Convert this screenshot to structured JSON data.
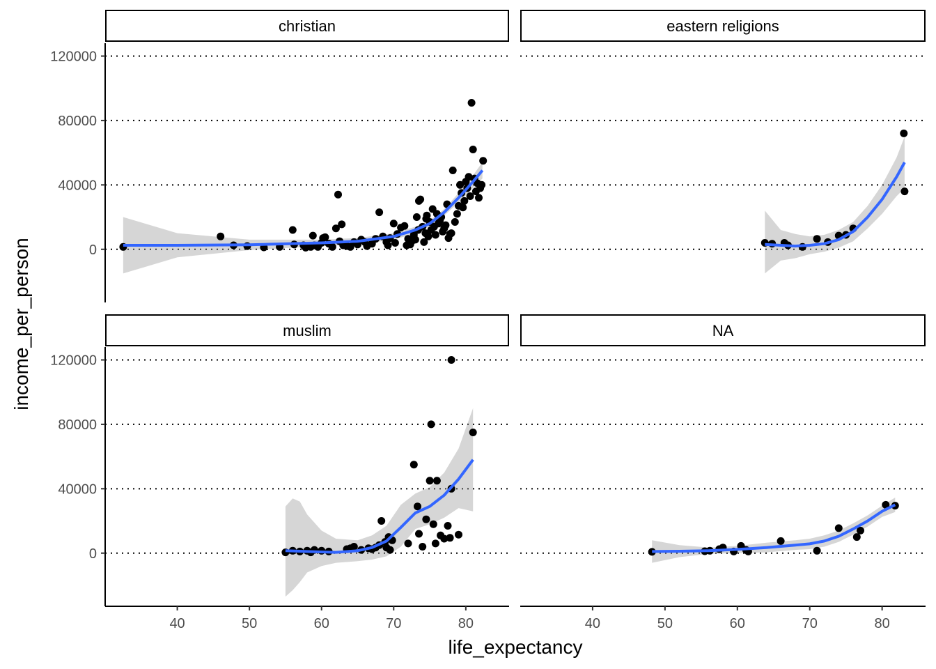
{
  "chart_data": {
    "type": "scatter",
    "subtype": "faceted scatter with loess smooth and confidence band",
    "xlabel": "life_expectancy",
    "ylabel": "income_per_person",
    "x_ticks": [
      40,
      50,
      60,
      70,
      80
    ],
    "y_ticks": [
      0,
      40000,
      80000,
      120000
    ],
    "xlim": [
      30,
      86
    ],
    "ylim": [
      -33000,
      128000
    ],
    "grid": "horizontal dotted major lines",
    "legend": "none",
    "colors": {
      "smooth": "#3366ff",
      "band": "#999999",
      "points": "#000000"
    },
    "facets": [
      {
        "label": "christian",
        "points": [
          [
            32.5,
            1500
          ],
          [
            46,
            8000
          ],
          [
            47.8,
            2500
          ],
          [
            49.7,
            2000
          ],
          [
            52,
            1200
          ],
          [
            54.2,
            1500
          ],
          [
            56,
            12000
          ],
          [
            56.2,
            3000
          ],
          [
            57.5,
            2500
          ],
          [
            57.8,
            1000
          ],
          [
            58.5,
            1500
          ],
          [
            58.8,
            8500
          ],
          [
            59,
            2500
          ],
          [
            59.5,
            1500
          ],
          [
            60,
            4000
          ],
          [
            60.2,
            7000
          ],
          [
            60.5,
            7500
          ],
          [
            61,
            3500
          ],
          [
            61.5,
            1500
          ],
          [
            62,
            13000
          ],
          [
            62.5,
            5000
          ],
          [
            63,
            2500
          ],
          [
            63.5,
            2000
          ],
          [
            64,
            1500
          ],
          [
            64.5,
            4500
          ],
          [
            65,
            3000
          ],
          [
            65.5,
            6000
          ],
          [
            62.8,
            15500
          ],
          [
            62.3,
            34000
          ],
          [
            66,
            4500
          ],
          [
            66.3,
            2000
          ],
          [
            67,
            3500
          ],
          [
            67.5,
            6500
          ],
          [
            68,
            23000
          ],
          [
            68.5,
            8000
          ],
          [
            69,
            4500
          ],
          [
            69.2,
            2500
          ],
          [
            69.5,
            7000
          ],
          [
            70,
            16000
          ],
          [
            70.2,
            4000
          ],
          [
            70.5,
            9500
          ],
          [
            71,
            13500
          ],
          [
            71.5,
            14500
          ],
          [
            71.8,
            2500
          ],
          [
            72,
            6500
          ],
          [
            72.3,
            3000
          ],
          [
            72.5,
            5000
          ],
          [
            72.8,
            9000
          ],
          [
            73,
            6000
          ],
          [
            73.2,
            20000
          ],
          [
            73.4,
            12000
          ],
          [
            73.5,
            30000
          ],
          [
            73.7,
            31000
          ],
          [
            74,
            14000
          ],
          [
            74.2,
            4500
          ],
          [
            74.4,
            10000
          ],
          [
            74.5,
            19000
          ],
          [
            74.6,
            21000
          ],
          [
            74.8,
            8000
          ],
          [
            75,
            17000
          ],
          [
            75.2,
            12000
          ],
          [
            75.4,
            25000
          ],
          [
            75.6,
            14000
          ],
          [
            75.8,
            9000
          ],
          [
            76,
            22000
          ],
          [
            76.2,
            16000
          ],
          [
            76.4,
            18000
          ],
          [
            76.6,
            20000
          ],
          [
            76.8,
            11000
          ],
          [
            77,
            13000
          ],
          [
            77.2,
            15000
          ],
          [
            77.4,
            28000
          ],
          [
            77.6,
            7000
          ],
          [
            77.8,
            9500
          ],
          [
            78,
            10000
          ],
          [
            78.2,
            49000
          ],
          [
            78.5,
            17000
          ],
          [
            78.8,
            22000
          ],
          [
            79,
            27000
          ],
          [
            79.2,
            40000
          ],
          [
            79.4,
            35000
          ],
          [
            79.6,
            26000
          ],
          [
            79.8,
            30000
          ],
          [
            80,
            42000
          ],
          [
            80.2,
            38000
          ],
          [
            80.4,
            45000
          ],
          [
            80.6,
            33000
          ],
          [
            80.8,
            91000
          ],
          [
            81,
            62000
          ],
          [
            81.2,
            44000
          ],
          [
            81.4,
            36000
          ],
          [
            81.6,
            41000
          ],
          [
            81.8,
            32000
          ],
          [
            82,
            38000
          ],
          [
            82.2,
            40000
          ],
          [
            82.4,
            55000
          ]
        ],
        "smooth": [
          [
            32.5,
            2500
          ],
          [
            40,
            2500
          ],
          [
            50,
            2800
          ],
          [
            60,
            4000
          ],
          [
            65,
            5000
          ],
          [
            70,
            8000
          ],
          [
            73,
            12000
          ],
          [
            75,
            16000
          ],
          [
            77,
            23000
          ],
          [
            79,
            32000
          ],
          [
            81,
            42000
          ],
          [
            82.3,
            49000
          ]
        ],
        "band_upper": [
          [
            32.5,
            20000
          ],
          [
            40,
            10000
          ],
          [
            50,
            6000
          ],
          [
            60,
            6000
          ],
          [
            65,
            7000
          ],
          [
            70,
            10000
          ],
          [
            73,
            14000
          ],
          [
            75,
            18000
          ],
          [
            77,
            25000
          ],
          [
            79,
            35000
          ],
          [
            81,
            46000
          ],
          [
            82.3,
            54000
          ]
        ],
        "band_lower": [
          [
            32.5,
            -15000
          ],
          [
            40,
            -5000
          ],
          [
            50,
            -500
          ],
          [
            60,
            2000
          ],
          [
            65,
            3000
          ],
          [
            70,
            6000
          ],
          [
            73,
            10000
          ],
          [
            75,
            14000
          ],
          [
            77,
            21000
          ],
          [
            79,
            29000
          ],
          [
            81,
            38000
          ],
          [
            82.3,
            44000
          ]
        ]
      },
      {
        "label": "eastern religions",
        "points": [
          [
            63.8,
            4000
          ],
          [
            64.8,
            3500
          ],
          [
            66.5,
            4000
          ],
          [
            67,
            2500
          ],
          [
            69,
            1500
          ],
          [
            71,
            6500
          ],
          [
            72.5,
            4500
          ],
          [
            74,
            8500
          ],
          [
            75,
            9000
          ],
          [
            76,
            13000
          ],
          [
            83,
            72000
          ],
          [
            83.1,
            36000
          ]
        ],
        "smooth": [
          [
            63.8,
            3000
          ],
          [
            66,
            2500
          ],
          [
            68,
            2000
          ],
          [
            70,
            2500
          ],
          [
            72,
            3500
          ],
          [
            74,
            6000
          ],
          [
            76,
            11000
          ],
          [
            78,
            20000
          ],
          [
            80,
            31000
          ],
          [
            82,
            45000
          ],
          [
            83.1,
            54000
          ]
        ],
        "band_upper": [
          [
            63.8,
            24000
          ],
          [
            66,
            12000
          ],
          [
            68,
            9500
          ],
          [
            70,
            8000
          ],
          [
            72,
            9000
          ],
          [
            74,
            12000
          ],
          [
            76,
            17000
          ],
          [
            78,
            27000
          ],
          [
            80,
            40000
          ],
          [
            82,
            57000
          ],
          [
            83.1,
            70000
          ]
        ],
        "band_lower": [
          [
            63.8,
            -15000
          ],
          [
            66,
            -7000
          ],
          [
            68,
            -5500
          ],
          [
            70,
            -3000
          ],
          [
            72,
            -1500
          ],
          [
            74,
            1000
          ],
          [
            76,
            5000
          ],
          [
            78,
            13000
          ],
          [
            80,
            22000
          ],
          [
            82,
            33000
          ],
          [
            83.1,
            38000
          ]
        ]
      },
      {
        "label": "muslim",
        "points": [
          [
            55,
            500
          ],
          [
            56,
            1500
          ],
          [
            57,
            1000
          ],
          [
            58,
            1500
          ],
          [
            58.5,
            500
          ],
          [
            59,
            2000
          ],
          [
            60,
            1500
          ],
          [
            61,
            1000
          ],
          [
            63.5,
            2500
          ],
          [
            64,
            3000
          ],
          [
            64.5,
            4000
          ],
          [
            65.5,
            2000
          ],
          [
            66.5,
            3000
          ],
          [
            67,
            2500
          ],
          [
            67.5,
            3500
          ],
          [
            68,
            5000
          ],
          [
            68.3,
            20000
          ],
          [
            68.8,
            7000
          ],
          [
            69,
            3500
          ],
          [
            69.3,
            10000
          ],
          [
            69.5,
            2000
          ],
          [
            69.8,
            8000
          ],
          [
            72,
            6000
          ],
          [
            72.8,
            55000
          ],
          [
            73.3,
            29000
          ],
          [
            73.5,
            12000
          ],
          [
            74,
            4000
          ],
          [
            74.5,
            21000
          ],
          [
            75,
            45000
          ],
          [
            75.2,
            80000
          ],
          [
            75.5,
            18000
          ],
          [
            75.8,
            6000
          ],
          [
            76,
            45000
          ],
          [
            76.5,
            11000
          ],
          [
            77,
            9000
          ],
          [
            77.5,
            17000
          ],
          [
            77.8,
            9500
          ],
          [
            78,
            40000
          ],
          [
            78,
            120000
          ],
          [
            79,
            11500
          ],
          [
            81,
            75000
          ]
        ],
        "smooth": [
          [
            55,
            1500
          ],
          [
            58,
            1000
          ],
          [
            62,
            500
          ],
          [
            65,
            1500
          ],
          [
            67,
            3500
          ],
          [
            69,
            7500
          ],
          [
            71,
            16000
          ],
          [
            73,
            25000
          ],
          [
            75,
            29000
          ],
          [
            77,
            36000
          ],
          [
            79,
            46000
          ],
          [
            81,
            58000
          ]
        ],
        "band_upper": [
          [
            55,
            29000
          ],
          [
            56,
            34000
          ],
          [
            57,
            32000
          ],
          [
            58,
            24000
          ],
          [
            60,
            14000
          ],
          [
            62,
            9000
          ],
          [
            65,
            8000
          ],
          [
            67,
            11000
          ],
          [
            69,
            17000
          ],
          [
            71,
            30000
          ],
          [
            73,
            37000
          ],
          [
            75,
            41000
          ],
          [
            77,
            50000
          ],
          [
            79,
            65000
          ],
          [
            81,
            90000
          ]
        ],
        "band_lower": [
          [
            55,
            -27000
          ],
          [
            56,
            -23000
          ],
          [
            57,
            -18000
          ],
          [
            58,
            -12000
          ],
          [
            60,
            -8000
          ],
          [
            62,
            -6000
          ],
          [
            65,
            -5000
          ],
          [
            67,
            -4000
          ],
          [
            69,
            -2000
          ],
          [
            71,
            4000
          ],
          [
            73,
            15000
          ],
          [
            75,
            18000
          ],
          [
            77,
            22000
          ],
          [
            79,
            28000
          ],
          [
            81,
            26000
          ]
        ]
      },
      {
        "label": "NA",
        "points": [
          [
            48.2,
            800
          ],
          [
            55.5,
            1200
          ],
          [
            56.2,
            1500
          ],
          [
            57.5,
            2500
          ],
          [
            58,
            3500
          ],
          [
            59.5,
            1000
          ],
          [
            60.5,
            4500
          ],
          [
            61.2,
            2000
          ],
          [
            61.5,
            1000
          ],
          [
            66,
            7500
          ],
          [
            71,
            1500
          ],
          [
            74,
            15500
          ],
          [
            76.5,
            10000
          ],
          [
            77,
            14000
          ],
          [
            80.5,
            30000
          ],
          [
            81.8,
            29500
          ]
        ],
        "smooth": [
          [
            48.2,
            1000
          ],
          [
            52,
            1200
          ],
          [
            56,
            1500
          ],
          [
            60,
            2300
          ],
          [
            64,
            3500
          ],
          [
            68,
            5000
          ],
          [
            70,
            5800
          ],
          [
            72,
            7500
          ],
          [
            74,
            10500
          ],
          [
            76,
            15000
          ],
          [
            78,
            20000
          ],
          [
            80,
            26000
          ],
          [
            81.8,
            30000
          ]
        ],
        "band_upper": [
          [
            48.2,
            8000
          ],
          [
            52,
            5000
          ],
          [
            56,
            3500
          ],
          [
            60,
            4500
          ],
          [
            64,
            6500
          ],
          [
            68,
            8000
          ],
          [
            70,
            9000
          ],
          [
            72,
            11000
          ],
          [
            74,
            14000
          ],
          [
            76,
            18500
          ],
          [
            78,
            23500
          ],
          [
            80,
            29500
          ],
          [
            81.8,
            34500
          ]
        ],
        "band_lower": [
          [
            48.2,
            -6000
          ],
          [
            52,
            -2500
          ],
          [
            56,
            -500
          ],
          [
            60,
            100
          ],
          [
            64,
            500
          ],
          [
            68,
            2000
          ],
          [
            70,
            2500
          ],
          [
            72,
            4000
          ],
          [
            74,
            7000
          ],
          [
            76,
            11500
          ],
          [
            78,
            16500
          ],
          [
            80,
            22500
          ],
          [
            81.8,
            25500
          ]
        ]
      }
    ]
  }
}
